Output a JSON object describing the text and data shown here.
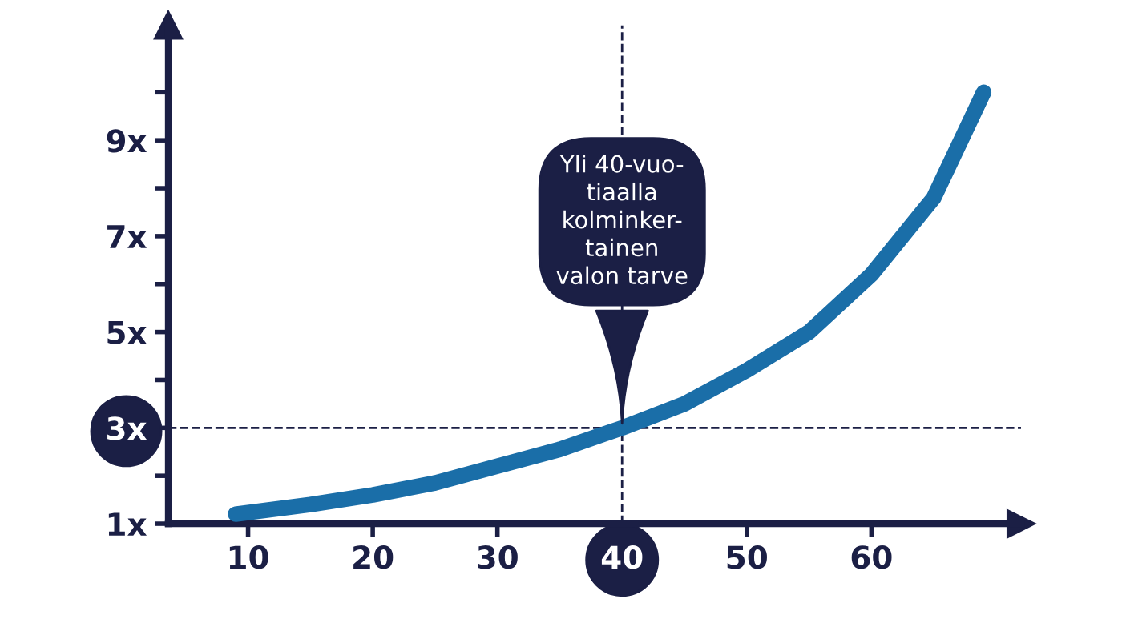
{
  "chart_data": {
    "type": "line",
    "x": [
      9,
      15,
      20,
      25,
      30,
      35,
      40,
      45,
      50,
      55,
      60,
      65,
      69
    ],
    "series": [
      {
        "color": "#1a6ea8",
        "values": [
          1.2,
          1.4,
          1.6,
          1.85,
          2.2,
          2.55,
          3,
          3.5,
          4.2,
          5.0,
          6.2,
          7.8,
          10
        ]
      }
    ],
    "xlim": [
      3.6,
      72
    ],
    "ylim": [
      1,
      11.4
    ],
    "xticks": [
      10,
      20,
      30,
      40,
      50,
      60
    ],
    "yticks": [
      {
        "value": 1,
        "label": "1x"
      },
      {
        "value": 2,
        "label": null
      },
      {
        "value": 3,
        "label": "3x"
      },
      {
        "value": 4,
        "label": null
      },
      {
        "value": 5,
        "label": "5x"
      },
      {
        "value": 6,
        "label": null
      },
      {
        "value": 7,
        "label": "7x"
      },
      {
        "value": 8,
        "label": null
      },
      {
        "value": 9,
        "label": "9x"
      },
      {
        "value": 10,
        "label": null
      }
    ],
    "ref_lines": [
      {
        "axis": "y",
        "value": 3,
        "color": "#1b1f45",
        "line_style": "dashed"
      },
      {
        "axis": "x",
        "value": 40,
        "color": "#1b1f45",
        "line_style": "dashed"
      }
    ],
    "annotations": [
      {
        "text": "Yli 40-vuo-\ntiaalla\nkolminker-\ntainen\nvalon tarve",
        "x": 40,
        "y": 3
      }
    ],
    "grid": false,
    "legend": false,
    "marker": "none",
    "line_style": "solid"
  }
}
